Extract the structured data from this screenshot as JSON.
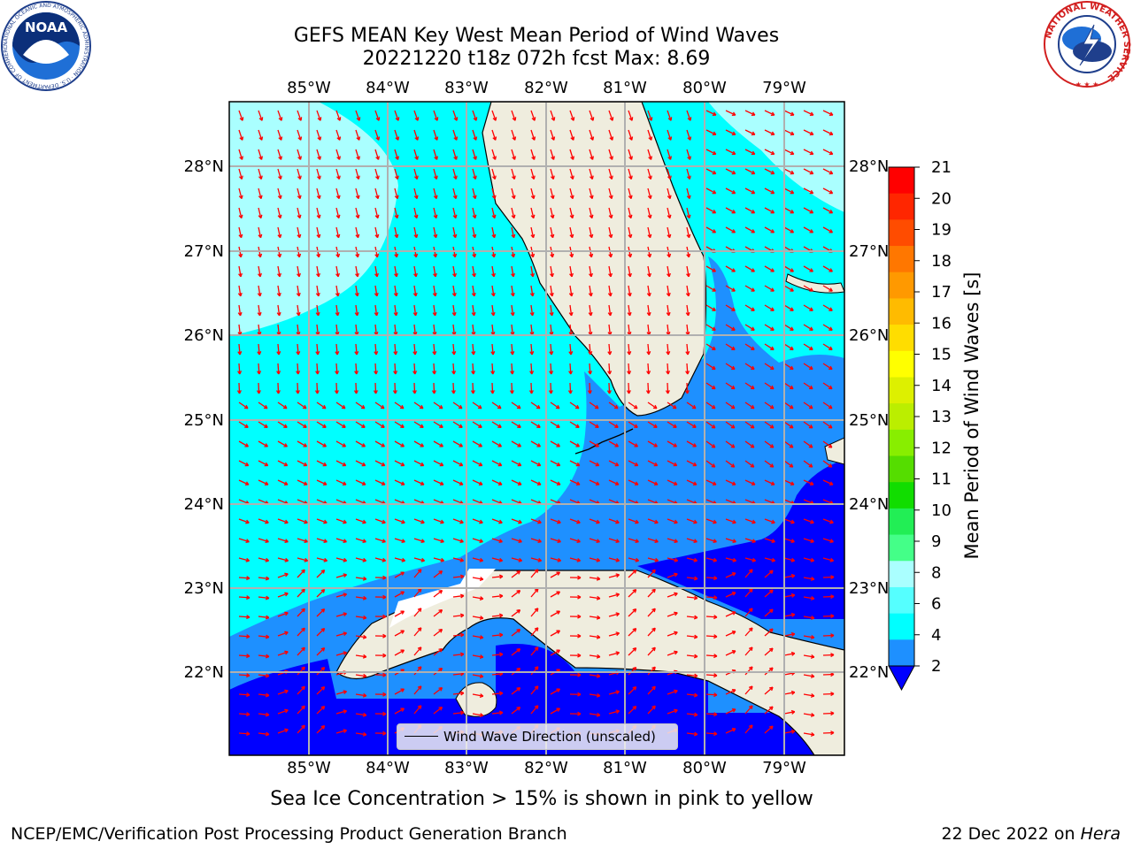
{
  "title": {
    "line1": "GEFS MEAN Key West Mean Period of Wind Waves",
    "line2": "20221220 t18z 072h fcst   Max: 8.69"
  },
  "map": {
    "lon_ticks": [
      "85°W",
      "84°W",
      "83°W",
      "82°W",
      "81°W",
      "80°W",
      "79°W"
    ],
    "lat_ticks": [
      "28°N",
      "27°N",
      "26°N",
      "25°N",
      "24°N",
      "23°N",
      "22°N"
    ],
    "legend_label": "Wind Wave Direction (unscaled)",
    "colors": {
      "ocean_light": "#aaffff",
      "ocean_cyan": "#00ffff",
      "ocean_mid": "#1e90ff",
      "ocean_deep": "#0000ff",
      "land": "#efedde",
      "arrow": "#ff0000",
      "grid": "#b0b0b0"
    }
  },
  "colorbar": {
    "label": "Mean Period of Wind Waves [s]",
    "ticks": [
      "21",
      "20",
      "19",
      "18",
      "17",
      "16",
      "15",
      "14",
      "13",
      "12",
      "11",
      "10",
      "9",
      "8",
      "6",
      "4",
      "2"
    ],
    "colors": [
      "#ff0000",
      "#ff2600",
      "#ff4c00",
      "#ff7700",
      "#ff9900",
      "#ffbb00",
      "#ffdd00",
      "#ffff00",
      "#ddf000",
      "#bbee00",
      "#88ee00",
      "#55dd00",
      "#11dd00",
      "#22ee55",
      "#44ff88",
      "#aaffff",
      "#55ffff",
      "#00ffff",
      "#1e90ff"
    ],
    "under_color": "#0000ff"
  },
  "logos": {
    "noaa_text": "NOAA",
    "noaa_ring": "NATIONAL OCEANIC AND ATMOSPHERIC ADMINISTRATION · U.S. DEPARTMENT OF COMMERCE",
    "nws_ring": "NATIONAL WEATHER SERVICE"
  },
  "footer": {
    "caption": "Sea Ice Concentration > 15% is shown in pink to yellow",
    "credit": "NCEP/EMC/Verification Post Processing Product Generation Branch",
    "date": "22 Dec 2022 on ",
    "host": "Hera"
  }
}
